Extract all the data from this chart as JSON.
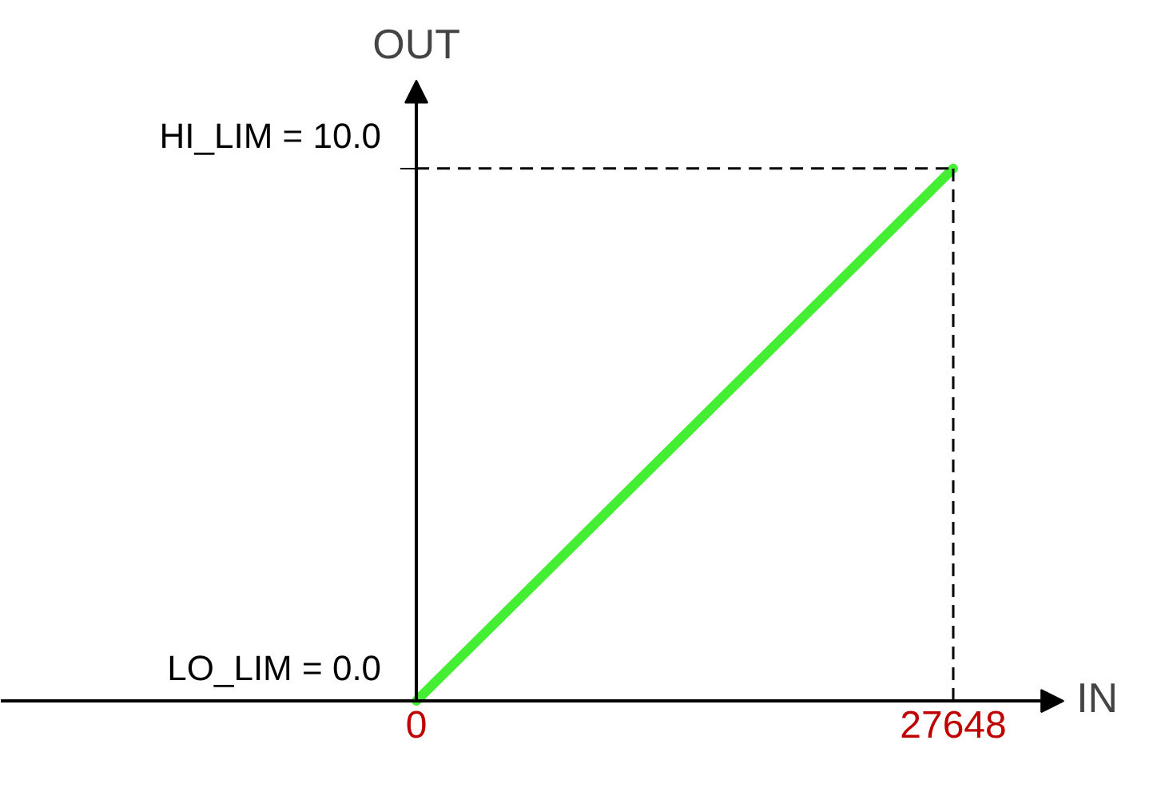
{
  "chart_data": {
    "type": "line",
    "xlabel": "IN",
    "ylabel": "OUT",
    "x": [
      0,
      27648
    ],
    "series": [
      {
        "color": "#44ee33",
        "values": [
          0,
          10
        ]
      }
    ],
    "xlim": [
      -21400,
      37770
    ],
    "ylim": [
      -1.8,
      13.15
    ],
    "xticks": [
      0,
      27648
    ],
    "yticks": [
      {
        "value": 0,
        "label": "LO_LIM = 0.0"
      },
      {
        "value": 10,
        "label": "HI_LIM = 10.0"
      }
    ],
    "ref_lines": [
      {
        "axis": "x",
        "value": 27648,
        "line_style": "dashed",
        "color": "#000000"
      },
      {
        "axis": "y",
        "value": 10,
        "line_style": "dashed",
        "color": "#000000"
      }
    ]
  }
}
